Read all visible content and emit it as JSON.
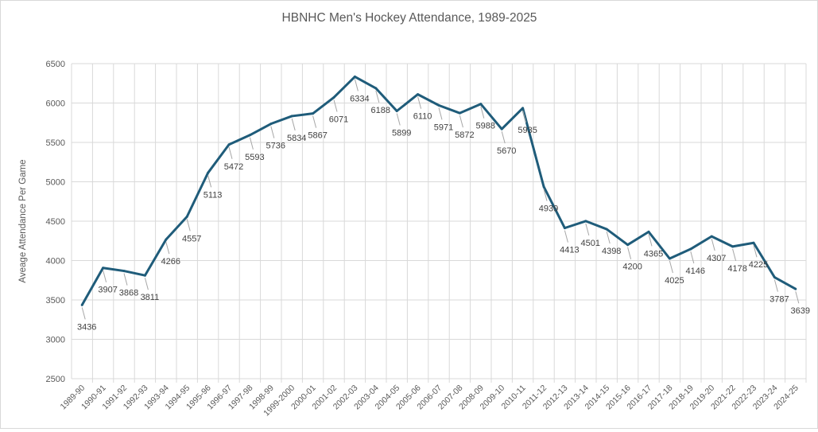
{
  "chart_data": {
    "type": "line",
    "title": "HBNHC Men's Hockey Attendance, 1989-2025",
    "xlabel": "",
    "ylabel": "Aveage Attendance Per Game",
    "ylim": [
      2500,
      6500
    ],
    "yticks": [
      2500,
      3000,
      3500,
      4000,
      4500,
      5000,
      5500,
      6000,
      6500
    ],
    "grid": true,
    "line_color": "#1f5c7a",
    "categories": [
      "1989-90",
      "1990-91",
      "1991-92",
      "1992-93",
      "1993-94",
      "1994-95",
      "1995-96",
      "1996-97",
      "1997-98",
      "1998-99",
      "1999-2000",
      "2000-01",
      "2001-02",
      "2002-03",
      "2003-04",
      "2004-05",
      "2005-06",
      "2006-07",
      "2007-08",
      "2008-09",
      "2009-10",
      "2010-11",
      "2011-12",
      "2012-13",
      "2013-14",
      "2014-15",
      "2015-16",
      "2016-17",
      "2017-18",
      "2018-19",
      "2019-20",
      "2021-22",
      "2022-23",
      "2023-24",
      "2024-25"
    ],
    "series": [
      {
        "name": "Average Attendance",
        "values": [
          3436,
          3907,
          3868,
          3811,
          4266,
          4557,
          5113,
          5472,
          5593,
          5736,
          5834,
          5867,
          6071,
          6334,
          6188,
          5899,
          6110,
          5971,
          5872,
          5988,
          5670,
          5935,
          4939,
          4413,
          4501,
          4398,
          4200,
          4365,
          4025,
          4146,
          4307,
          4178,
          4225,
          3787,
          3639
        ]
      }
    ]
  }
}
